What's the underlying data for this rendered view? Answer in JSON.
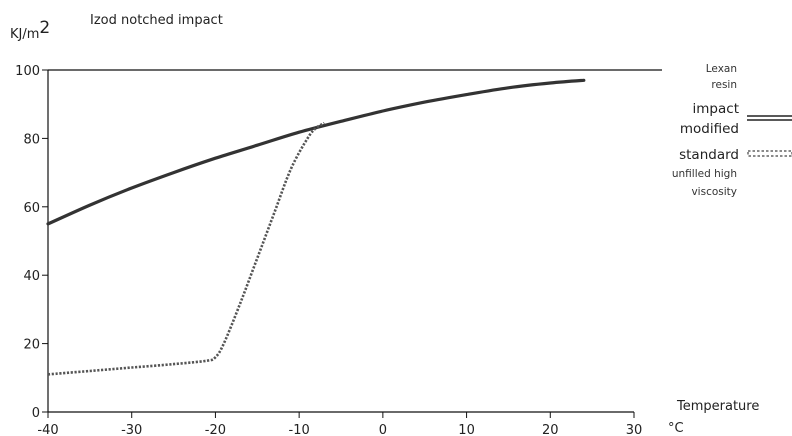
{
  "chart_data": {
    "type": "line",
    "title": "Izod notched impact",
    "ylabel_base": "KJ/m",
    "ylabel_sup": "2",
    "xlabel": "Temperature",
    "xunit": "°C",
    "xlim": [
      -40,
      30
    ],
    "ylim": [
      0,
      100
    ],
    "xticks": [
      -40,
      -30,
      -20,
      -10,
      0,
      10,
      20,
      30
    ],
    "yticks": [
      0,
      20,
      40,
      60,
      80,
      100
    ],
    "grid": false,
    "legend": {
      "heading": [
        "Lexan",
        "resin"
      ],
      "impact_label": [
        "impact",
        "modified"
      ],
      "standard_label": [
        "standard",
        "unfilled high",
        "viscosity"
      ]
    },
    "series": [
      {
        "line_style": "solid-double",
        "color": "#333333",
        "x": [
          -40,
          -35,
          -30,
          -25,
          -20,
          -15,
          -10,
          -5,
          0,
          5,
          10,
          15,
          20,
          24
        ],
        "y": [
          55,
          60.5,
          65.5,
          70,
          74.2,
          78,
          81.8,
          85,
          88,
          90.6,
          92.8,
          94.8,
          96.2,
          97
        ]
      },
      {
        "line_style": "dotted",
        "color": "#555555",
        "x": [
          -40,
          -35,
          -30,
          -25,
          -21,
          -20,
          -19,
          -17,
          -15,
          -13,
          -11,
          -9,
          -8,
          -7
        ],
        "y": [
          11,
          12,
          13,
          14,
          15,
          16,
          20,
          32,
          45,
          58,
          71,
          80,
          83,
          84.5
        ]
      }
    ]
  }
}
